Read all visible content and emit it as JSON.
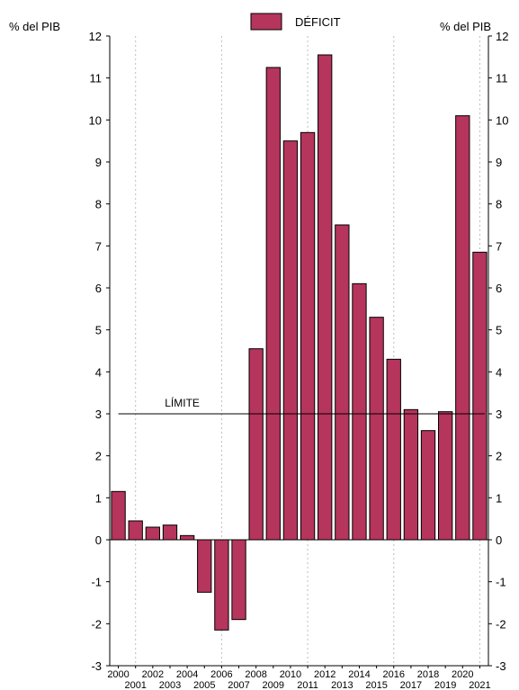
{
  "chart_data": {
    "type": "bar",
    "ylabel_left": "% del PIB",
    "ylabel_right": "% del PIB",
    "ylim": [
      -3,
      12
    ],
    "yticks": [
      -3,
      -2,
      -1,
      0,
      1,
      2,
      3,
      4,
      5,
      6,
      7,
      8,
      9,
      10,
      11,
      12
    ],
    "legend_position": "top-center",
    "grid": "vertical dotted",
    "categories": [
      "2000",
      "2001",
      "2002",
      "2003",
      "2004",
      "2005",
      "2006",
      "2007",
      "2008",
      "2009",
      "2010",
      "2011",
      "2012",
      "2013",
      "2014",
      "2015",
      "2016",
      "2017",
      "2018",
      "2019",
      "2020",
      "2021"
    ],
    "series": [
      {
        "name": "DÉFICIT",
        "color": "#b5355c",
        "values": [
          1.15,
          0.45,
          0.3,
          0.35,
          0.1,
          -1.25,
          -2.15,
          -1.9,
          4.55,
          11.25,
          9.5,
          9.7,
          11.55,
          7.5,
          6.1,
          5.3,
          4.3,
          3.1,
          2.6,
          3.05,
          10.1,
          6.85
        ]
      }
    ],
    "reference_line": {
      "label": "LÍMITE",
      "value": 3
    }
  }
}
